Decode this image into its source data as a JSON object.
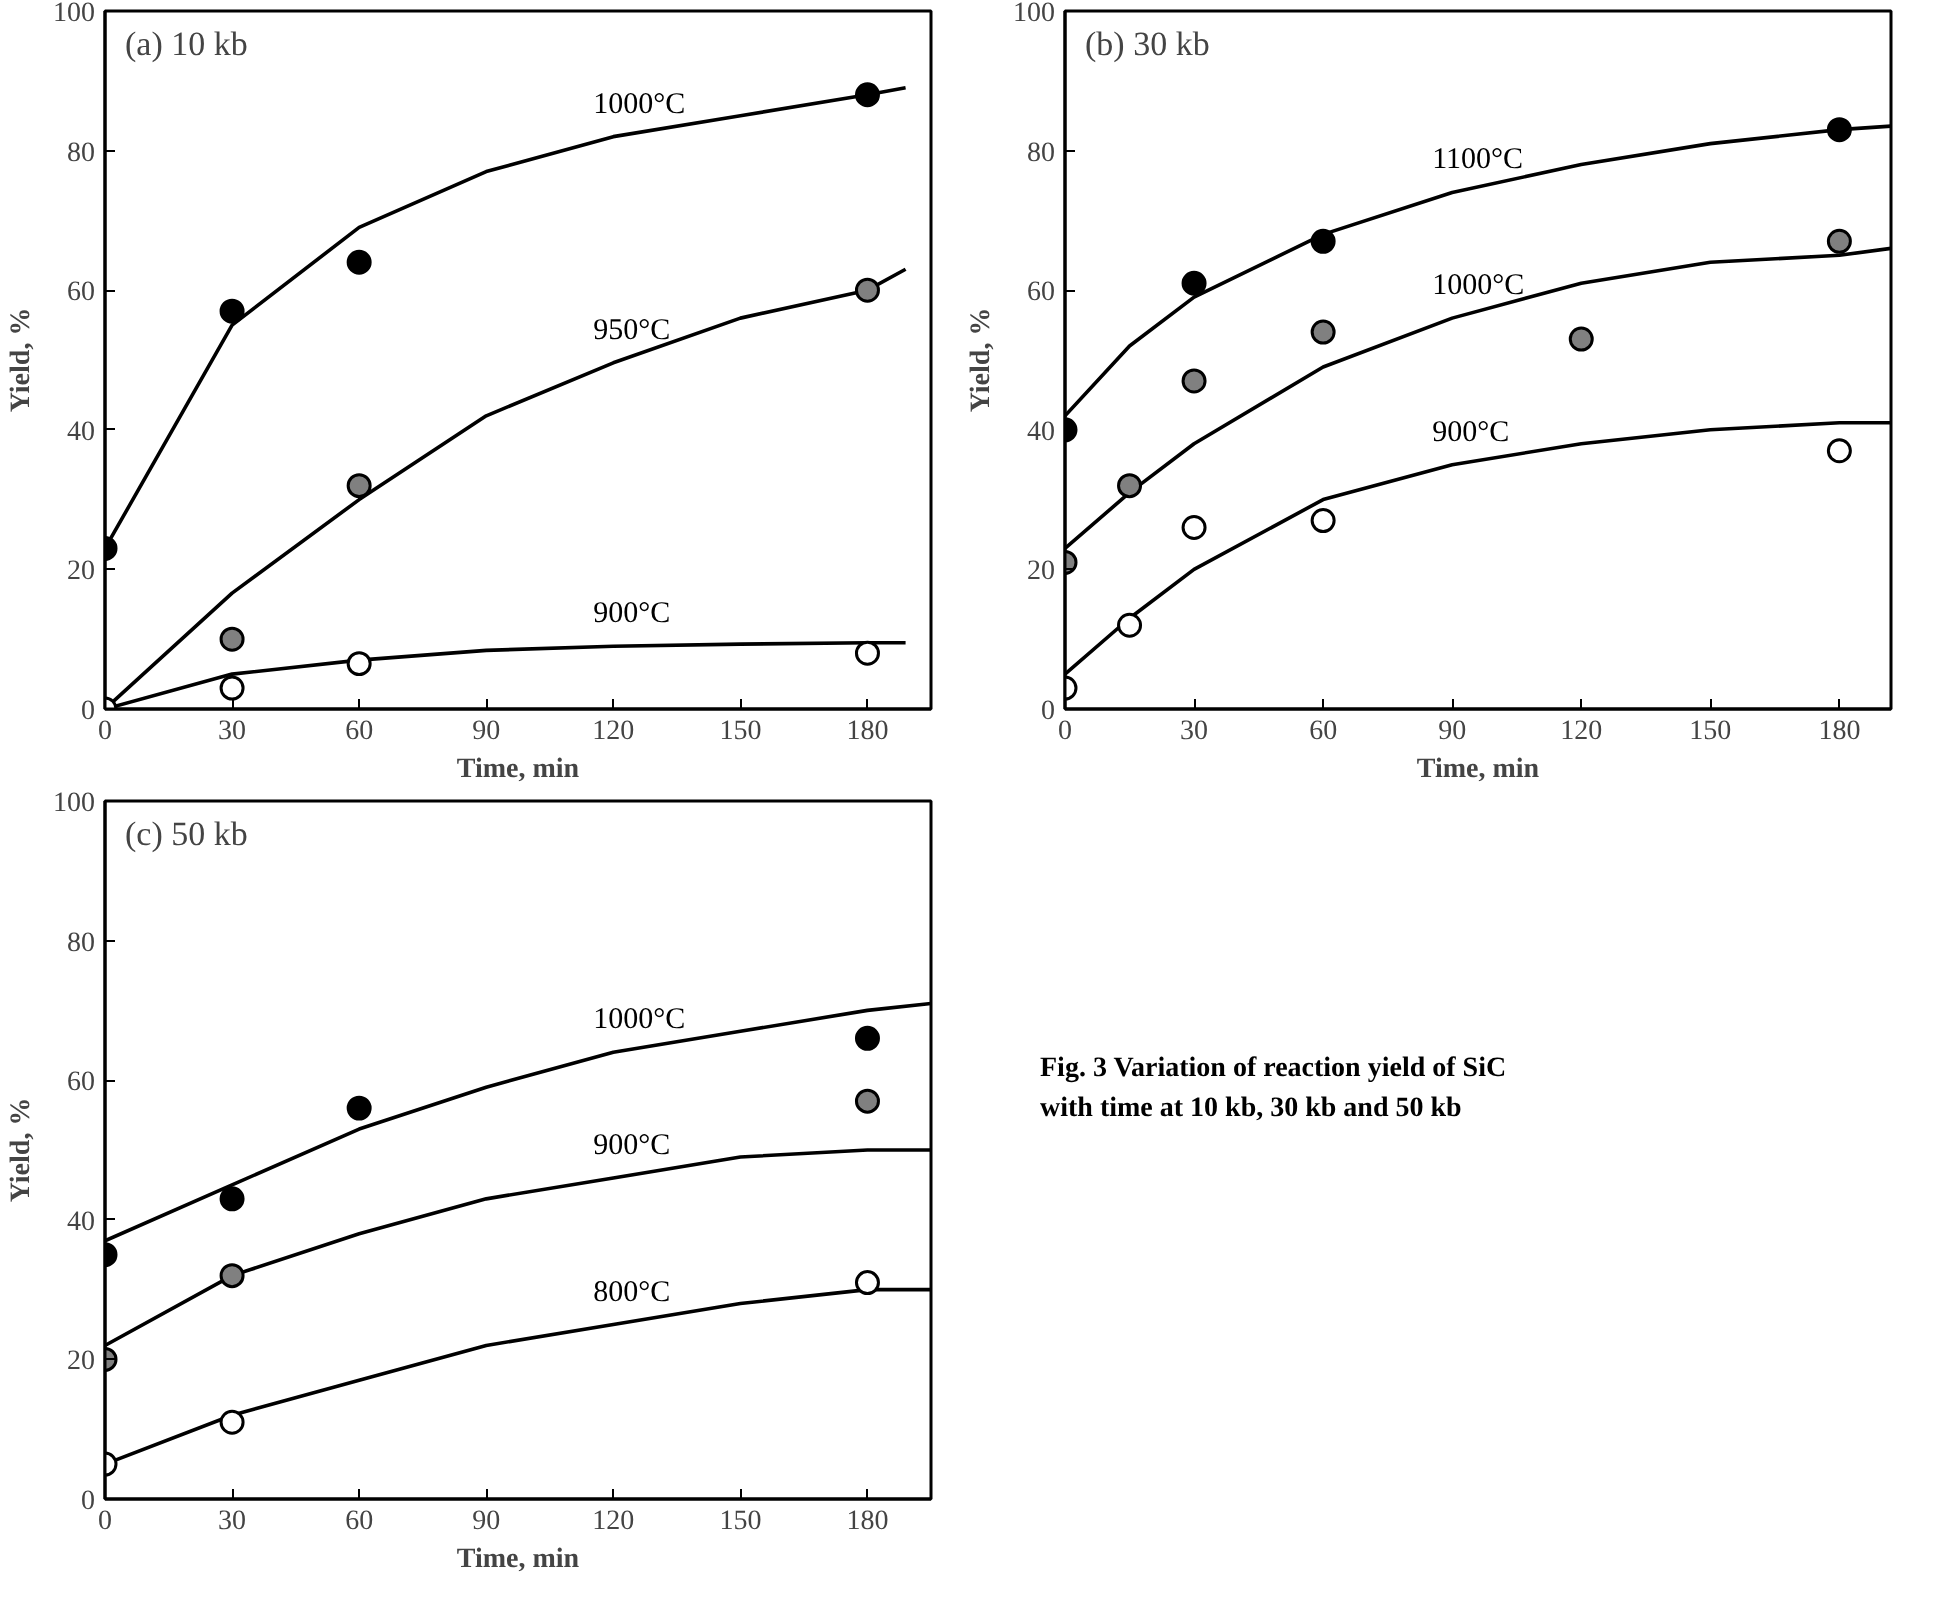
{
  "chart_data": [
    {
      "type": "scatter",
      "annotations": [
        "(a)  10 kb"
      ],
      "xlabel": "Time, min",
      "ylabel": "Yield, %",
      "xlim": [
        0,
        195
      ],
      "ylim": [
        0,
        100
      ],
      "xticks": [
        0,
        30,
        60,
        90,
        120,
        150,
        180
      ],
      "yticks": [
        0,
        20,
        40,
        60,
        80,
        100
      ],
      "grid": false,
      "series": [
        {
          "type": "line",
          "name": "1000°C",
          "color": "#000000",
          "marker": "none",
          "x": [
            0,
            30,
            60,
            90,
            120,
            150,
            180,
            189
          ],
          "values": [
            23,
            55,
            69,
            77,
            82,
            85,
            88,
            89
          ]
        },
        {
          "type": "line",
          "name": "950°C",
          "color": "#000000",
          "marker": "none",
          "x": [
            0,
            30,
            60,
            90,
            120,
            150,
            180,
            189
          ],
          "values": [
            0,
            16.6,
            30,
            42,
            49.6,
            56,
            60,
            63
          ]
        },
        {
          "type": "line",
          "name": "900°C",
          "color": "#000000",
          "marker": "none",
          "x": [
            0,
            30,
            60,
            90,
            120,
            150,
            180,
            189
          ],
          "values": [
            0,
            5,
            7,
            8.4,
            9,
            9.3,
            9.5,
            9.5
          ]
        },
        {
          "type": "scatter",
          "color": "#000000",
          "marker": "circle",
          "x": [
            0,
            30,
            60,
            180
          ],
          "values": [
            23,
            57,
            64,
            88
          ]
        },
        {
          "type": "scatter",
          "color": "#808080",
          "marker": "circle",
          "x": [
            30,
            60,
            180
          ],
          "values": [
            10,
            32,
            60
          ]
        },
        {
          "type": "scatter",
          "color": "#ffffff",
          "marker": "circle",
          "x": [
            0,
            30,
            60,
            180
          ],
          "values": [
            0,
            3,
            6.5,
            8
          ]
        }
      ]
    },
    {
      "type": "scatter",
      "annotations": [
        "(b)  30 kb"
      ],
      "xlabel": "Time, min",
      "ylabel": "Yield, %",
      "xlim": [
        0,
        192
      ],
      "ylim": [
        0,
        100
      ],
      "xticks": [
        0,
        30,
        60,
        90,
        120,
        150,
        180
      ],
      "yticks": [
        0,
        20,
        40,
        60,
        80,
        100
      ],
      "grid": false,
      "series": [
        {
          "type": "line",
          "name": "1100°C",
          "color": "#000000",
          "marker": "none",
          "x": [
            0,
            15,
            30,
            60,
            90,
            120,
            150,
            180,
            192
          ],
          "values": [
            42,
            52,
            59,
            68,
            74,
            78,
            81,
            83,
            83.5
          ]
        },
        {
          "type": "line",
          "name": "1000°C",
          "color": "#000000",
          "marker": "none",
          "x": [
            0,
            15,
            30,
            60,
            90,
            120,
            150,
            180,
            192
          ],
          "values": [
            23,
            31,
            38,
            49,
            56,
            61,
            64,
            65,
            66
          ]
        },
        {
          "type": "line",
          "name": "900°C",
          "color": "#000000",
          "marker": "none",
          "x": [
            0,
            15,
            30,
            60,
            90,
            120,
            150,
            180,
            192
          ],
          "values": [
            5,
            13,
            20,
            30,
            35,
            38,
            40,
            41,
            41
          ]
        },
        {
          "type": "scatter",
          "color": "#000000",
          "marker": "circle",
          "x": [
            0,
            30,
            60,
            180
          ],
          "values": [
            40,
            61,
            67,
            83
          ]
        },
        {
          "type": "scatter",
          "color": "#808080",
          "marker": "circle",
          "x": [
            0,
            15,
            30,
            60,
            120,
            180
          ],
          "values": [
            21,
            32,
            47,
            54,
            53,
            67
          ]
        },
        {
          "type": "scatter",
          "color": "#ffffff",
          "marker": "circle",
          "x": [
            0,
            15,
            30,
            60,
            180
          ],
          "values": [
            3,
            12,
            26,
            27,
            37
          ]
        }
      ]
    },
    {
      "type": "scatter",
      "annotations": [
        "(c)  50 kb"
      ],
      "xlabel": "Time, min",
      "ylabel": "Yield, %",
      "xlim": [
        0,
        195
      ],
      "ylim": [
        0,
        100
      ],
      "xticks": [
        0,
        30,
        60,
        90,
        120,
        150,
        180
      ],
      "yticks": [
        0,
        20,
        40,
        60,
        80,
        100
      ],
      "grid": false,
      "series": [
        {
          "type": "line",
          "name": "1000°C",
          "color": "#000000",
          "marker": "none",
          "x": [
            0,
            30,
            60,
            90,
            120,
            150,
            180,
            195
          ],
          "values": [
            37,
            45,
            53,
            59,
            64,
            67,
            70,
            71
          ]
        },
        {
          "type": "line",
          "name": "900°C",
          "color": "#000000",
          "marker": "none",
          "x": [
            0,
            30,
            60,
            90,
            120,
            150,
            180,
            195
          ],
          "values": [
            22,
            32,
            38,
            43,
            46,
            49,
            50,
            50
          ]
        },
        {
          "type": "line",
          "name": "800°C",
          "color": "#000000",
          "marker": "none",
          "x": [
            0,
            30,
            60,
            90,
            120,
            150,
            180,
            195
          ],
          "values": [
            5,
            12,
            17,
            22,
            25,
            28,
            30,
            30
          ]
        },
        {
          "type": "scatter",
          "color": "#000000",
          "marker": "circle",
          "x": [
            0,
            30,
            60,
            180
          ],
          "values": [
            35,
            43,
            56,
            66
          ]
        },
        {
          "type": "scatter",
          "color": "#808080",
          "marker": "circle",
          "x": [
            0,
            30,
            180
          ],
          "values": [
            20,
            32,
            57
          ]
        },
        {
          "type": "scatter",
          "color": "#ffffff",
          "marker": "circle",
          "x": [
            0,
            30,
            180
          ],
          "values": [
            5,
            11,
            31
          ]
        }
      ]
    },
    {
      "type": "other",
      "annotations": [
        "Fig. 3  Variation of reaction yield of SiC with time at 10 kb, 30 kb and 50 kb"
      ]
    }
  ]
}
